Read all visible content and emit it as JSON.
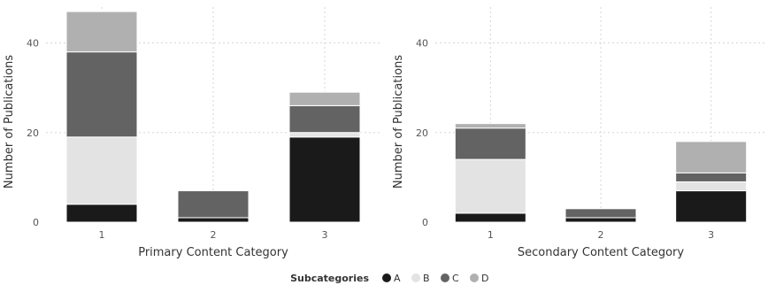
{
  "chart_data": [
    {
      "type": "bar",
      "stacked": true,
      "xlabel": "Primary Content Category",
      "ylabel": "Number of Publications",
      "categories": [
        "1",
        "2",
        "3"
      ],
      "ylim": [
        0,
        48
      ],
      "yticks": [
        0,
        20,
        40
      ],
      "grid": true,
      "series": [
        {
          "name": "A",
          "color": "#1a1a1a",
          "values": [
            4,
            1,
            19
          ]
        },
        {
          "name": "B",
          "color": "#e3e3e3",
          "values": [
            15,
            0,
            1
          ]
        },
        {
          "name": "C",
          "color": "#636363",
          "values": [
            19,
            6,
            6
          ]
        },
        {
          "name": "D",
          "color": "#b0b0b0",
          "values": [
            9,
            0,
            3
          ]
        }
      ]
    },
    {
      "type": "bar",
      "stacked": true,
      "xlabel": "Secondary Content Category",
      "ylabel": "Number of Publications",
      "categories": [
        "1",
        "2",
        "3"
      ],
      "ylim": [
        0,
        48
      ],
      "yticks": [
        0,
        20,
        40
      ],
      "grid": true,
      "series": [
        {
          "name": "A",
          "color": "#1a1a1a",
          "values": [
            2,
            1,
            7
          ]
        },
        {
          "name": "B",
          "color": "#e3e3e3",
          "values": [
            12,
            0,
            2
          ]
        },
        {
          "name": "C",
          "color": "#636363",
          "values": [
            7,
            2,
            2
          ]
        },
        {
          "name": "D",
          "color": "#b0b0b0",
          "values": [
            1,
            0,
            7
          ]
        }
      ]
    }
  ],
  "legend": {
    "title": "Subcategories",
    "placement": "bottom-center",
    "items": [
      {
        "label": "A",
        "color": "#1a1a1a"
      },
      {
        "label": "B",
        "color": "#e3e3e3"
      },
      {
        "label": "C",
        "color": "#636363"
      },
      {
        "label": "D",
        "color": "#b0b0b0"
      }
    ]
  }
}
